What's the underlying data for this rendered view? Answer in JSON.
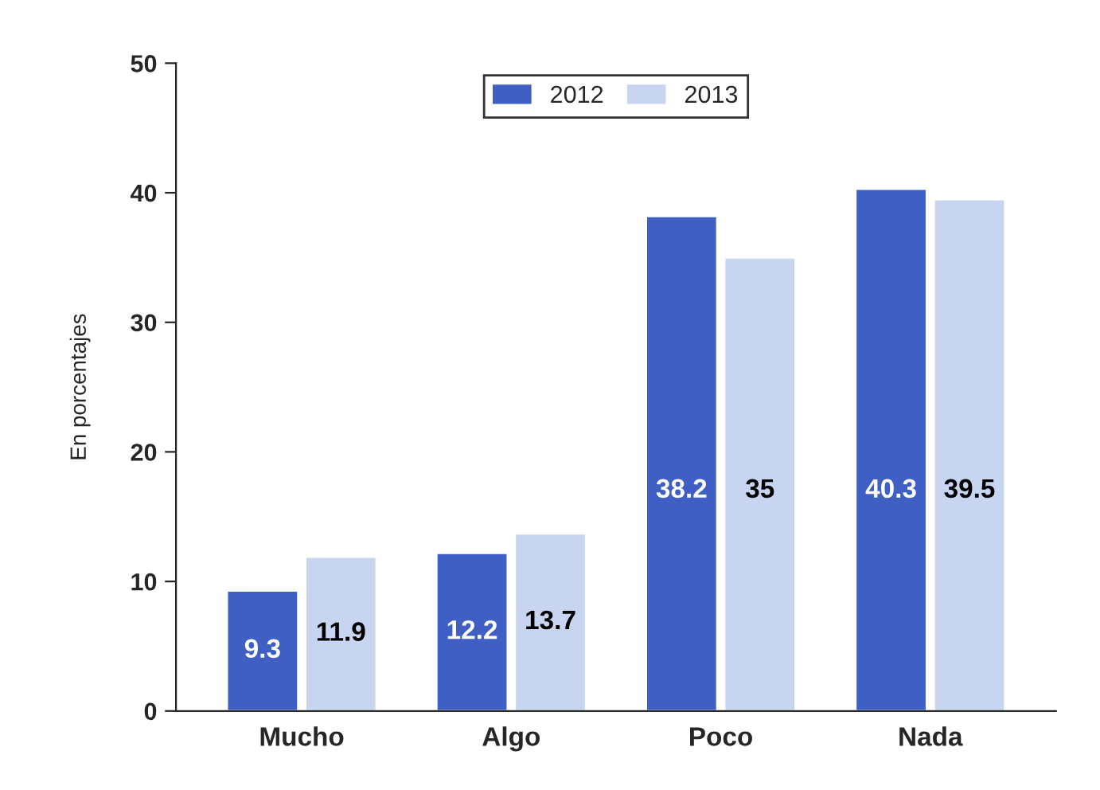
{
  "chart_data": {
    "type": "bar",
    "ylabel": "En porcentajes",
    "categories": [
      "Mucho",
      "Algo",
      "Poco",
      "Nada"
    ],
    "series": [
      {
        "name": "2012",
        "color": "#3f5fc4",
        "values": [
          9.3,
          12.2,
          38.2,
          40.3
        ]
      },
      {
        "name": "2013",
        "color": "#c8d5f0",
        "values": [
          11.9,
          13.7,
          35,
          39.5
        ]
      }
    ],
    "ylim": [
      0,
      50
    ],
    "yticks": [
      0,
      10,
      20,
      30,
      40,
      50
    ],
    "data_labels": true,
    "legend": "top",
    "grid": false
  }
}
